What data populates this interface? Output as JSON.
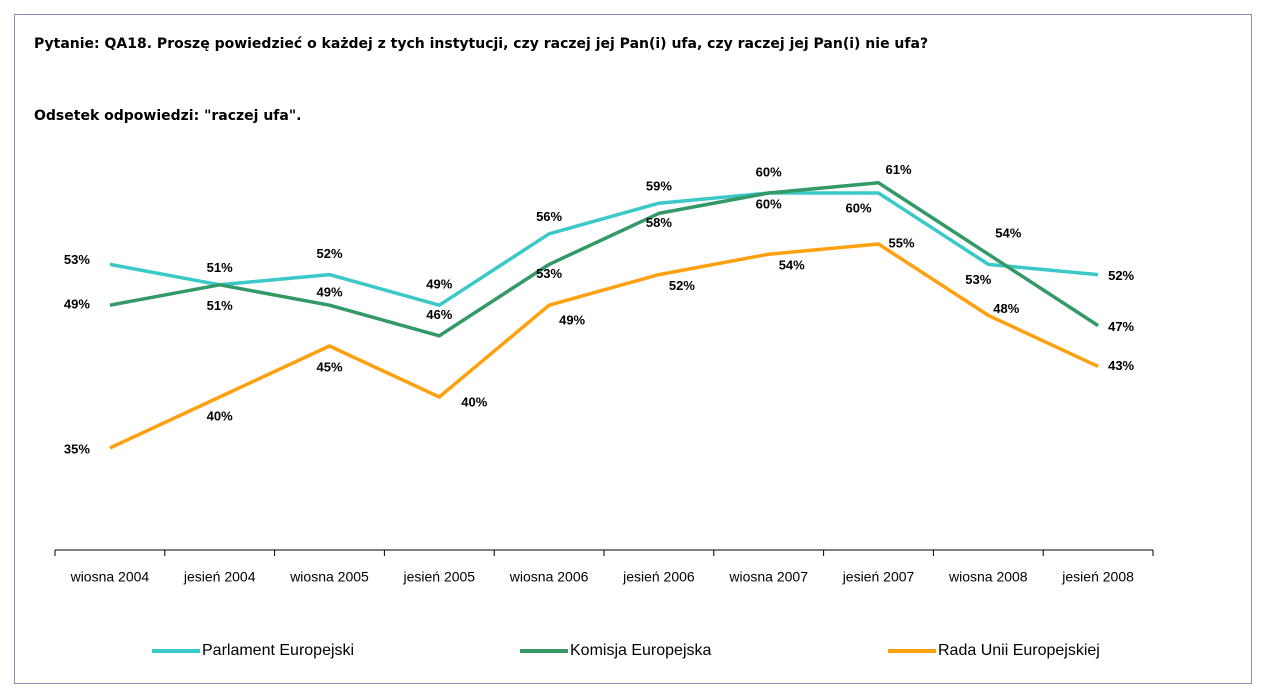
{
  "chart_data": {
    "type": "line",
    "title": "Pytanie: QA18. Proszę powiedzieć o każdej z tych instytucji, czy raczej jej Pan(i) ufa, czy raczej jej Pan(i) nie ufa?",
    "subtitle": "Odsetek odpowiedzi: \"raczej ufa\".",
    "categories": [
      "wiosna 2004",
      "jesień 2004",
      "wiosna 2005",
      "jesień 2005",
      "wiosna 2006",
      "jesień 2006",
      "wiosna 2007",
      "jesień 2007",
      "wiosna 2008",
      "jesień 2008"
    ],
    "series": [
      {
        "name": "Parlament Europejski",
        "color": "#3cc8c8",
        "values": [
          53,
          51,
          52,
          49,
          56,
          59,
          60,
          60,
          53,
          52
        ],
        "value_labels": [
          "53%",
          "51%",
          "52%",
          "49%",
          "56%",
          "59%",
          "60%",
          "60%",
          "53%",
          "52%"
        ]
      },
      {
        "name": "Komisja Europejska",
        "color": "#339966",
        "values": [
          49,
          51,
          49,
          46,
          53,
          58,
          60,
          61,
          54,
          47
        ],
        "value_labels": [
          "49%",
          "51%",
          "49%",
          "46%",
          "53%",
          "58%",
          "60%",
          "61%",
          "54%",
          "47%"
        ]
      },
      {
        "name": "Rada Unii Europejskiej",
        "color": "#ffa00f",
        "values": [
          35,
          40,
          45,
          40,
          49,
          52,
          54,
          55,
          48,
          43
        ],
        "value_labels": [
          "35%",
          "40%",
          "45%",
          "40%",
          "49%",
          "52%",
          "54%",
          "55%",
          "48%",
          "43%"
        ]
      }
    ],
    "ylim": [
      25,
      65
    ],
    "legend": "bottom"
  }
}
